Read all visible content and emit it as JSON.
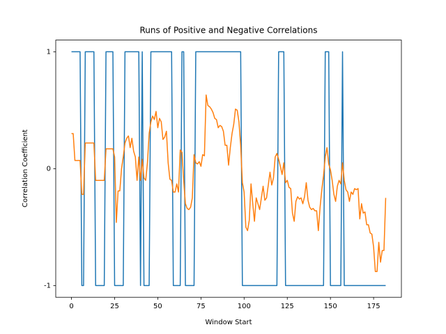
{
  "chart_data": {
    "type": "line",
    "title": "Runs of Positive and Negative Correlations",
    "x_label": "Window Start",
    "y_label": "Correlation Coefficient",
    "x": [
      0,
      1,
      2,
      3,
      4,
      5,
      6,
      7,
      8,
      9,
      10,
      11,
      12,
      13,
      14,
      15,
      16,
      17,
      18,
      19,
      20,
      21,
      22,
      23,
      24,
      25,
      26,
      27,
      28,
      29,
      30,
      31,
      32,
      33,
      34,
      35,
      36,
      37,
      38,
      39,
      40,
      41,
      42,
      43,
      44,
      45,
      46,
      47,
      48,
      49,
      50,
      51,
      52,
      53,
      54,
      55,
      56,
      57,
      58,
      59,
      60,
      61,
      62,
      63,
      64,
      65,
      66,
      67,
      68,
      69,
      70,
      71,
      72,
      73,
      74,
      75,
      76,
      77,
      78,
      79,
      80,
      81,
      82,
      83,
      84,
      85,
      86,
      87,
      88,
      89,
      90,
      91,
      92,
      93,
      94,
      95,
      96,
      97,
      98,
      99,
      100,
      101,
      102,
      103,
      104,
      105,
      106,
      107,
      108,
      109,
      110,
      111,
      112,
      113,
      114,
      115,
      116,
      117,
      118,
      119,
      120,
      121,
      122,
      123,
      124,
      125,
      126,
      127,
      128,
      129,
      130,
      131,
      132,
      133,
      134,
      135,
      136,
      137,
      138,
      139,
      140,
      141,
      142,
      143,
      144,
      145,
      146,
      147,
      148,
      149,
      150,
      151,
      152,
      153,
      154,
      155,
      156,
      157,
      158,
      159,
      160,
      161,
      162,
      163,
      164,
      165,
      166,
      167,
      168,
      169,
      170,
      171,
      172,
      173,
      174,
      175,
      176,
      177,
      178,
      179,
      180,
      181,
      182
    ],
    "series": [
      {
        "color": "#1f77b4",
        "values": [
          1,
          1,
          1,
          1,
          1,
          1,
          -1,
          -1,
          1,
          1,
          1,
          1,
          1,
          1,
          -1,
          -1,
          -1,
          -1,
          -1,
          -1,
          1,
          1,
          1,
          1,
          1,
          -1,
          -1,
          -1,
          -1,
          -1,
          -1,
          1,
          1,
          1,
          1,
          1,
          1,
          1,
          1,
          1,
          -1,
          1,
          -1,
          -1,
          -1,
          -1,
          1,
          1,
          1,
          1,
          1,
          1,
          1,
          1,
          1,
          1,
          1,
          1,
          1,
          -1,
          -1,
          -1,
          -1,
          -1,
          1,
          1,
          -1,
          -1,
          -1,
          -1,
          -1,
          -1,
          1,
          1,
          1,
          1,
          1,
          1,
          1,
          1,
          1,
          1,
          1,
          1,
          1,
          1,
          1,
          1,
          1,
          1,
          1,
          1,
          1,
          1,
          1,
          1,
          1,
          1,
          1,
          -1,
          -1,
          -1,
          -1,
          -1,
          -1,
          -1,
          -1,
          -1,
          -1,
          -1,
          -1,
          -1,
          -1,
          -1,
          -1,
          -1,
          -1,
          -1,
          -1,
          -1,
          1,
          1,
          1,
          1,
          -1,
          -1,
          -1,
          -1,
          -1,
          -1,
          -1,
          -1,
          -1,
          -1,
          -1,
          -1,
          -1,
          -1,
          -1,
          -1,
          -1,
          -1,
          -1,
          -1,
          -1,
          -1,
          -1,
          1,
          1,
          1,
          -1,
          -1,
          -1,
          -1,
          -1,
          -1,
          -1,
          1,
          -1,
          -1,
          -1,
          -1,
          -1,
          -1,
          -1,
          -1,
          -1,
          -1,
          -1,
          -1,
          -1,
          -1,
          -1,
          -1,
          -1,
          -1,
          -1,
          -1,
          -1,
          -1,
          -1,
          -1,
          -1
        ]
      },
      {
        "color": "#ff7f0e",
        "values": [
          0.3,
          0.3,
          0.07,
          0.07,
          0.07,
          0.07,
          -0.22,
          -0.22,
          0.22,
          0.22,
          0.22,
          0.22,
          0.22,
          0.22,
          -0.1,
          -0.1,
          -0.1,
          -0.1,
          -0.1,
          -0.1,
          0.17,
          0.17,
          0.17,
          0.17,
          0.17,
          0.1,
          -0.46,
          -0.19,
          -0.19,
          0,
          0.1,
          0.22,
          0.26,
          0.28,
          0.18,
          0.26,
          0.15,
          0.1,
          -0.1,
          0.1,
          -0.1,
          0.08,
          -0.08,
          -0.1,
          0.05,
          0.3,
          0.4,
          0.45,
          0.42,
          0.49,
          0.35,
          0.43,
          0.4,
          0.25,
          0.27,
          0.32,
          0.05,
          -0.09,
          -0.1,
          -0.2,
          -0.2,
          -0.13,
          -0.2,
          0.16,
          0.14,
          -0.1,
          -0.3,
          -0.34,
          -0.35,
          -0.33,
          -0.25,
          0.12,
          0.05,
          0.04,
          0.06,
          0.02,
          0.12,
          0.11,
          0.63,
          0.54,
          0.53,
          0.51,
          0.48,
          0.43,
          0.42,
          0.35,
          0.37,
          0.36,
          0.32,
          0.2,
          0.2,
          0.03,
          0.18,
          0.3,
          0.38,
          0.51,
          0.5,
          0.4,
          0.2,
          -0.12,
          -0.2,
          -0.5,
          -0.53,
          -0.44,
          -0.13,
          -0.3,
          -0.45,
          -0.25,
          -0.3,
          -0.35,
          -0.25,
          -0.15,
          -0.27,
          -0.25,
          -0.14,
          -0.03,
          -0.14,
          -0.08,
          0.1,
          0.13,
          0.08,
          0.02,
          -0.05,
          0.05,
          -0.12,
          -0.1,
          -0.16,
          -0.17,
          -0.38,
          -0.45,
          -0.28,
          -0.24,
          -0.26,
          -0.25,
          -0.3,
          -0.24,
          -0.12,
          -0.27,
          -0.33,
          -0.35,
          -0.34,
          -0.36,
          -0.36,
          -0.53,
          -0.33,
          -0.18,
          -0.06,
          0.1,
          0.18,
          0.04,
          -0.01,
          -0.1,
          -0.22,
          -0.28,
          -0.15,
          -0.1,
          -0.13,
          0.05,
          -0.1,
          -0.18,
          -0.2,
          -0.28,
          -0.2,
          -0.22,
          -0.17,
          -0.18,
          -0.17,
          -0.43,
          -0.3,
          -0.38,
          -0.37,
          -0.48,
          -0.48,
          -0.55,
          -0.56,
          -0.67,
          -0.88,
          -0.88,
          -0.63,
          -0.8,
          -0.7,
          -0.7,
          -0.25
        ]
      }
    ],
    "xlim": [
      -9.1,
      191.1
    ],
    "ylim": [
      -1.1,
      1.1
    ],
    "xticks": [
      0,
      25,
      50,
      75,
      100,
      125,
      150,
      175
    ],
    "yticks": [
      -1,
      0,
      1
    ]
  }
}
